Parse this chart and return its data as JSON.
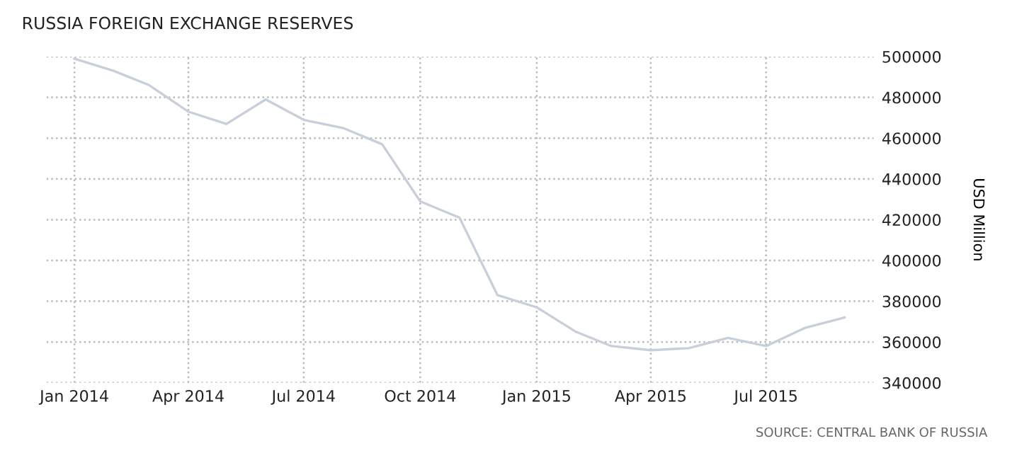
{
  "chart_data": {
    "type": "line",
    "title": "RUSSIA FOREIGN EXCHANGE RESERVES",
    "ylabel": "USD Million",
    "x": [
      "2014-01",
      "2014-02",
      "2014-03",
      "2014-04",
      "2014-05",
      "2014-06",
      "2014-07",
      "2014-08",
      "2014-09",
      "2014-10",
      "2014-11",
      "2014-12",
      "2015-01",
      "2015-02",
      "2015-03",
      "2015-04",
      "2015-05",
      "2015-06",
      "2015-07",
      "2015-08",
      "2015-09"
    ],
    "series": [
      {
        "color": "#c8cfdb",
        "values": [
          499000,
          493000,
          486000,
          473000,
          467000,
          479000,
          469000,
          465000,
          457000,
          429000,
          421000,
          383000,
          377000,
          365000,
          358000,
          356000,
          357000,
          362000,
          358000,
          367000,
          372000
        ]
      }
    ],
    "xlim": [
      "2013-12-10",
      "2015-09-24"
    ],
    "xticks": [
      {
        "value": "2014-01",
        "label": "Jan 2014"
      },
      {
        "value": "2014-04",
        "label": "Apr 2014"
      },
      {
        "value": "2014-07",
        "label": "Jul 2014"
      },
      {
        "value": "2014-10",
        "label": "Oct 2014"
      },
      {
        "value": "2015-01",
        "label": "Jan 2015"
      },
      {
        "value": "2015-04",
        "label": "Apr 2015"
      },
      {
        "value": "2015-07",
        "label": "Jul 2015"
      }
    ],
    "ylim": [
      340000,
      500000
    ],
    "yticks": [
      340000,
      360000,
      380000,
      400000,
      420000,
      440000,
      460000,
      480000,
      500000
    ],
    "grid": true,
    "marker": "none",
    "line_style": "solid",
    "annotations": [
      "SOURCE: CENTRAL BANK OF RUSSIA"
    ]
  }
}
